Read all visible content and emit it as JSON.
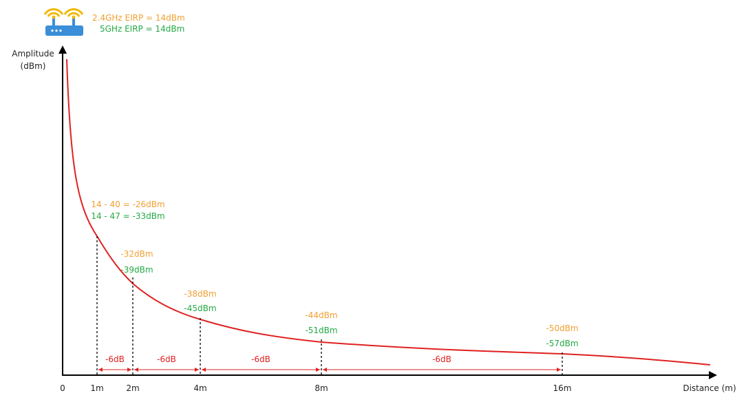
{
  "router": {
    "label_24": "2.4GHz EIRP = 14dBm",
    "label_5": "5GHz EIRP = 14dBm"
  },
  "colors": {
    "orange": "#F0A030",
    "green": "#22AA44",
    "red": "#E02020",
    "router_blue": "#3A8FD8",
    "wifi_yellow": "#F2B800",
    "axis": "#000000"
  },
  "axes": {
    "y_label_line1": "Amplitude",
    "y_label_line2": "(dBm)",
    "x_label": "Distance (m)",
    "origin": "0"
  },
  "chart_data": {
    "type": "line",
    "x_ticks": [
      "1m",
      "2m",
      "4m",
      "8m",
      "16m"
    ],
    "x": [
      1,
      2,
      4,
      8,
      16
    ],
    "series": [
      {
        "values": [
          -26,
          -32,
          -38,
          -44,
          -50
        ]
      },
      {
        "values": [
          -33,
          -39,
          -45,
          -51,
          -57
        ]
      }
    ],
    "annotations": [
      {
        "x": "1m",
        "orange": "14 - 40 = -26dBm",
        "green": "14 - 47 = -33dBm"
      },
      {
        "x": "2m",
        "orange": "-32dBm",
        "green": "-39dBm"
      },
      {
        "x": "4m",
        "orange": "-38dBm",
        "green": "-45dBm"
      },
      {
        "x": "8m",
        "orange": "-44dBm",
        "green": "-51dBm"
      },
      {
        "x": "16m",
        "orange": "-50dBm",
        "green": "-57dBm"
      }
    ],
    "interval_labels": [
      "-6dB",
      "-6dB",
      "-6dB",
      "-6dB"
    ]
  }
}
